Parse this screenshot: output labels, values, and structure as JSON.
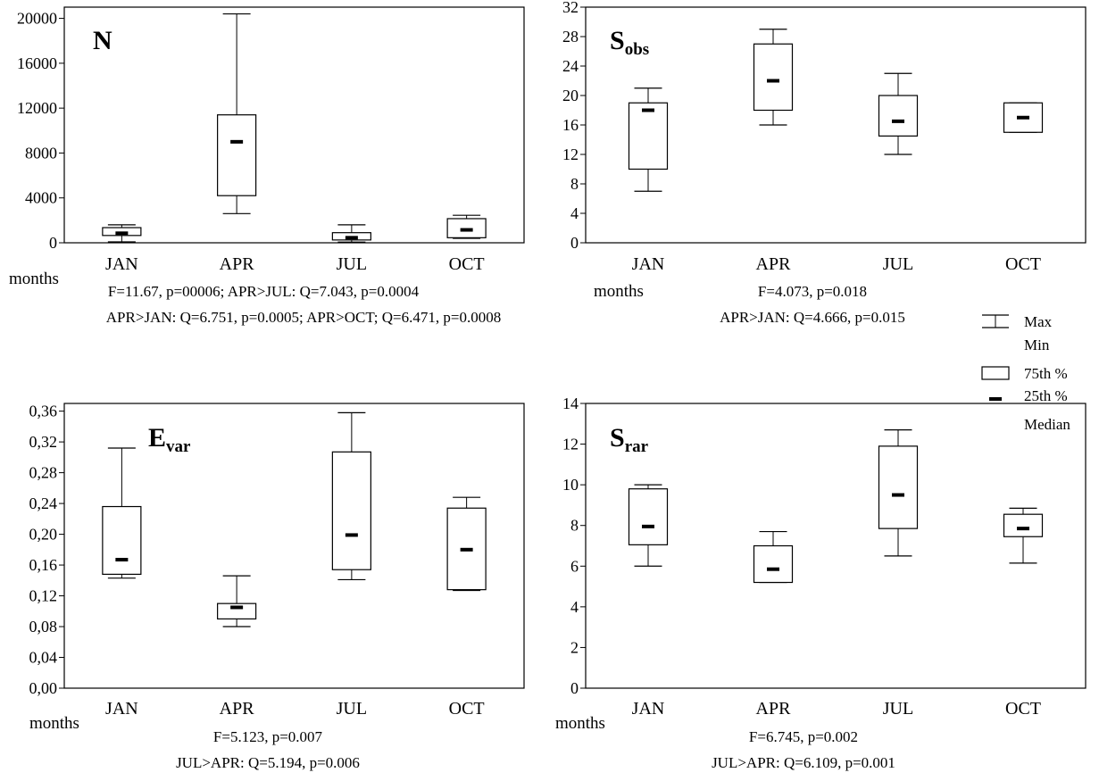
{
  "chart_data": [
    {
      "type": "box",
      "label": "N",
      "categories": [
        "JAN",
        "APR",
        "JUL",
        "OCT"
      ],
      "ylim": [
        0,
        21000
      ],
      "yticks": [
        "0",
        "4000",
        "8000",
        "12000",
        "16000",
        "20000"
      ],
      "ytick_values": [
        0,
        4000,
        8000,
        12000,
        16000,
        20000
      ],
      "xlabel": "months",
      "boxes": [
        {
          "min": 80,
          "q1": 650,
          "median": 850,
          "q3": 1350,
          "max": 1600
        },
        {
          "min": 2600,
          "q1": 4200,
          "median": 9000,
          "q3": 11400,
          "max": 20400
        },
        {
          "min": 60,
          "q1": 250,
          "median": 450,
          "q3": 900,
          "max": 1600
        },
        {
          "min": 400,
          "q1": 450,
          "median": 1150,
          "q3": 2150,
          "max": 2450
        }
      ],
      "stats": [
        "F=11.67, p=00006; APR>JUL: Q=7.043, p=0.0004",
        "APR>JAN: Q=6.751, p=0.0005; APR>OCT; Q=6.471, p=0.0008"
      ]
    },
    {
      "type": "box",
      "label": "S",
      "label_sub": "obs",
      "categories": [
        "JAN",
        "APR",
        "JUL",
        "OCT"
      ],
      "ylim": [
        0,
        32
      ],
      "yticks": [
        "0",
        "4",
        "8",
        "12",
        "16",
        "20",
        "24",
        "28",
        "32"
      ],
      "ytick_values": [
        0,
        4,
        8,
        12,
        16,
        20,
        24,
        28,
        32
      ],
      "xlabel": "months",
      "boxes": [
        {
          "min": 7,
          "q1": 10,
          "median": 18,
          "q3": 19,
          "max": 21
        },
        {
          "min": 16,
          "q1": 18,
          "median": 22,
          "q3": 27,
          "max": 29
        },
        {
          "min": 12,
          "q1": 14.5,
          "median": 16.5,
          "q3": 20,
          "max": 23
        },
        {
          "min": 15,
          "q1": 15,
          "median": 17,
          "q3": 19,
          "max": 19
        }
      ],
      "stats": [
        "F=4.073, p=0.018",
        "APR>JAN: Q=4.666, p=0.015"
      ]
    },
    {
      "type": "box",
      "label": "E",
      "label_sub": "var",
      "categories": [
        "JAN",
        "APR",
        "JUL",
        "OCT"
      ],
      "ylim": [
        0,
        0.37
      ],
      "yticks": [
        "0,00",
        "0,04",
        "0,08",
        "0,12",
        "0,16",
        "0,20",
        "0,24",
        "0,28",
        "0,32",
        "0,36"
      ],
      "ytick_values": [
        0,
        0.04,
        0.08,
        0.12,
        0.16,
        0.2,
        0.24,
        0.28,
        0.32,
        0.36
      ],
      "xlabel": "months",
      "boxes": [
        {
          "min": 0.143,
          "q1": 0.148,
          "median": 0.167,
          "q3": 0.236,
          "max": 0.312
        },
        {
          "min": 0.08,
          "q1": 0.09,
          "median": 0.105,
          "q3": 0.11,
          "max": 0.146
        },
        {
          "min": 0.141,
          "q1": 0.154,
          "median": 0.199,
          "q3": 0.307,
          "max": 0.358
        },
        {
          "min": 0.127,
          "q1": 0.128,
          "median": 0.18,
          "q3": 0.234,
          "max": 0.248
        }
      ],
      "stats": [
        "F=5.123, p=0.007",
        "JUL>APR: Q=5.194, p=0.006"
      ]
    },
    {
      "type": "box",
      "label": "S",
      "label_sub": "rar",
      "categories": [
        "JAN",
        "APR",
        "JUL",
        "OCT"
      ],
      "ylim": [
        0,
        14
      ],
      "yticks": [
        "0",
        "2",
        "4",
        "6",
        "8",
        "10",
        "12",
        "14"
      ],
      "ytick_values": [
        0,
        2,
        4,
        6,
        8,
        10,
        12,
        14
      ],
      "xlabel": "months",
      "boxes": [
        {
          "min": 6.0,
          "q1": 7.05,
          "median": 7.95,
          "q3": 9.8,
          "max": 10.0
        },
        {
          "min": 5.2,
          "q1": 5.2,
          "median": 5.85,
          "q3": 7.0,
          "max": 7.7
        },
        {
          "min": 6.5,
          "q1": 7.85,
          "median": 9.5,
          "q3": 11.9,
          "max": 12.7
        },
        {
          "min": 6.15,
          "q1": 7.45,
          "median": 7.85,
          "q3": 8.55,
          "max": 8.85
        }
      ],
      "stats": [
        "F=6.745, p=0.002",
        "JUL>APR: Q=6.109, p=0.001"
      ]
    }
  ],
  "legend": {
    "whisker_top": "Max",
    "whisker_bottom": "Min",
    "box_top": "75th %",
    "box_bottom": "25th %",
    "median": "Median"
  }
}
